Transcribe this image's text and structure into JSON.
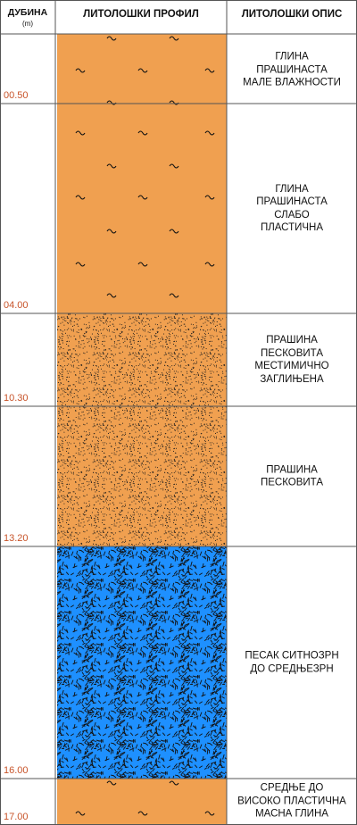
{
  "header": {
    "depth_title": "ДУБИНА",
    "depth_unit": "(m)",
    "profile_title": "ЛИТОЛОШКИ ПРОФИЛ",
    "description_title": "ЛИТОЛОШКИ ОПИС"
  },
  "colors": {
    "clay": "#f0a050",
    "sand": "#1e90ff",
    "depth_label": "#c8542a",
    "grid": "#555555"
  },
  "layers": [
    {
      "depth_label": "00.50",
      "pattern": "clay-wave",
      "description": [
        "ГЛИНА",
        "ПРАШИНАСТА",
        "МАЛЕ ВЛАЖНОСТИ"
      ]
    },
    {
      "depth_label": "04.00",
      "pattern": "clay-wave",
      "description": [
        "ГЛИНА",
        "ПРАШИНАСТА",
        "СЛАБО",
        "ПЛАСТИЧНА"
      ]
    },
    {
      "depth_label": "10.30",
      "pattern": "silt-dots",
      "description": [
        "ПРАШИНА",
        "ПЕСКОВИТА",
        "МЕСТИМИЧНО",
        "ЗАГЛИЊЕНА"
      ]
    },
    {
      "depth_label": "13.20",
      "pattern": "silt-dots",
      "description": [
        "ПРАШИНА",
        "ПЕСКОВИТА"
      ]
    },
    {
      "depth_label": "16.00",
      "pattern": "sand-dashes",
      "description": [
        "ПЕСАК СИТНОЗРН",
        "ДО СРЕДЊЕЗРН"
      ]
    },
    {
      "depth_label": "17.00",
      "pattern": "clay-wave",
      "description": [
        "СРЕДЊЕ ДО",
        "ВИСОКО ПЛАСТИЧНА",
        "МАСНА ГЛИНА"
      ]
    }
  ]
}
